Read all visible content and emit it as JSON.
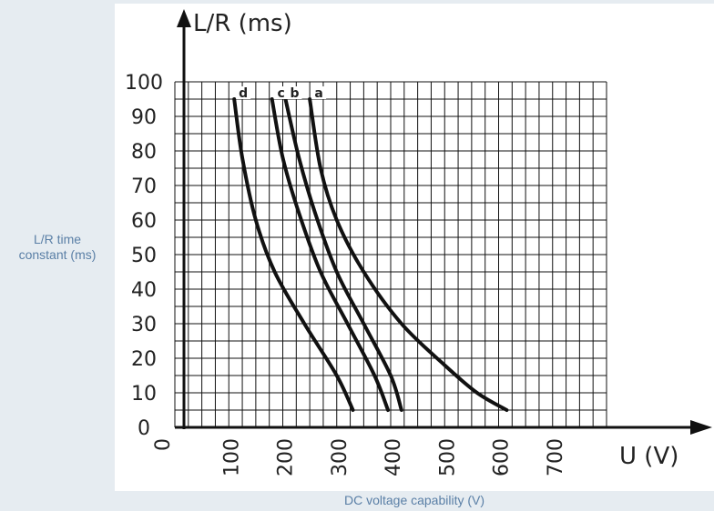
{
  "chart_data": {
    "type": "line",
    "title": "",
    "ylabel_outer": "L/R time\nconstant (ms)",
    "xlabel_outer": "DC voltage capability (V)",
    "y_arrow_label": "L/R (ms)",
    "x_arrow_label": "U (V)",
    "xlim": [
      0,
      800
    ],
    "ylim": [
      0,
      100
    ],
    "x_ticks": [
      "0",
      "100",
      "200",
      "300",
      "400",
      "500",
      "600",
      "700"
    ],
    "y_ticks": [
      "0",
      "10",
      "20",
      "30",
      "40",
      "50",
      "60",
      "70",
      "80",
      "90",
      "100"
    ],
    "grid": true,
    "series": [
      {
        "name": "a",
        "x": [
          250,
          270,
          300,
          350,
          420,
          500,
          560,
          615
        ],
        "y": [
          95,
          75,
          60,
          45,
          30,
          18,
          10,
          5
        ]
      },
      {
        "name": "b",
        "x": [
          205,
          230,
          260,
          300,
          350,
          400,
          420
        ],
        "y": [
          95,
          78,
          62,
          45,
          30,
          15,
          5
        ]
      },
      {
        "name": "c",
        "x": [
          180,
          200,
          230,
          270,
          320,
          370,
          395
        ],
        "y": [
          95,
          78,
          62,
          45,
          30,
          15,
          5
        ]
      },
      {
        "name": "d",
        "x": [
          110,
          125,
          150,
          185,
          240,
          300,
          330
        ],
        "y": [
          95,
          78,
          60,
          45,
          30,
          15,
          5
        ]
      }
    ]
  }
}
